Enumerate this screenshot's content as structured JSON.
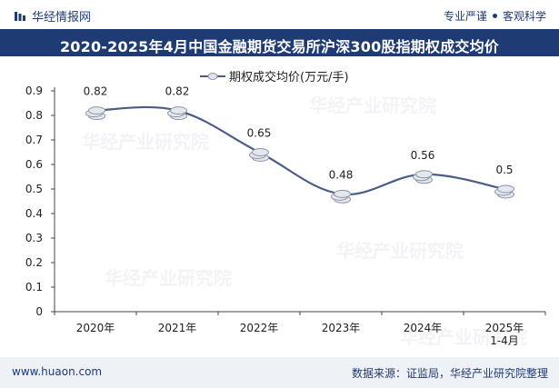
{
  "header": {
    "brand": "华经情报网",
    "slogan_left": "专业严谨",
    "slogan_right": "客观科学"
  },
  "title": "2020-2025年4月中国金融期货交易所沪深300股指期权成交均价",
  "footer": {
    "website": "www.huaon.com",
    "source": "数据来源：证监局，华经产业研究院整理"
  },
  "watermark": "华经产业研究院",
  "colors": {
    "title_bg": "#1f3b73",
    "line": "#4a5d87",
    "text": "#1f3b73"
  },
  "chart_data": {
    "type": "line",
    "categories": [
      "2020年",
      "2021年",
      "2022年",
      "2023年",
      "2024年",
      "2025年 1-4月"
    ],
    "series": [
      {
        "name": "期权成交均价(万元/手)",
        "values": [
          0.82,
          0.82,
          0.65,
          0.48,
          0.56,
          0.5
        ]
      }
    ],
    "data_labels": [
      "0.82",
      "0.82",
      "0.65",
      "0.48",
      "0.56",
      "0.5"
    ],
    "y_ticks": [
      "0",
      "0.1",
      "0.2",
      "0.3",
      "0.4",
      "0.5",
      "0.6",
      "0.7",
      "0.8",
      "0.9"
    ],
    "ylim": [
      0,
      0.9
    ],
    "legend_position": "top-center",
    "grid": false,
    "smooth": true
  }
}
